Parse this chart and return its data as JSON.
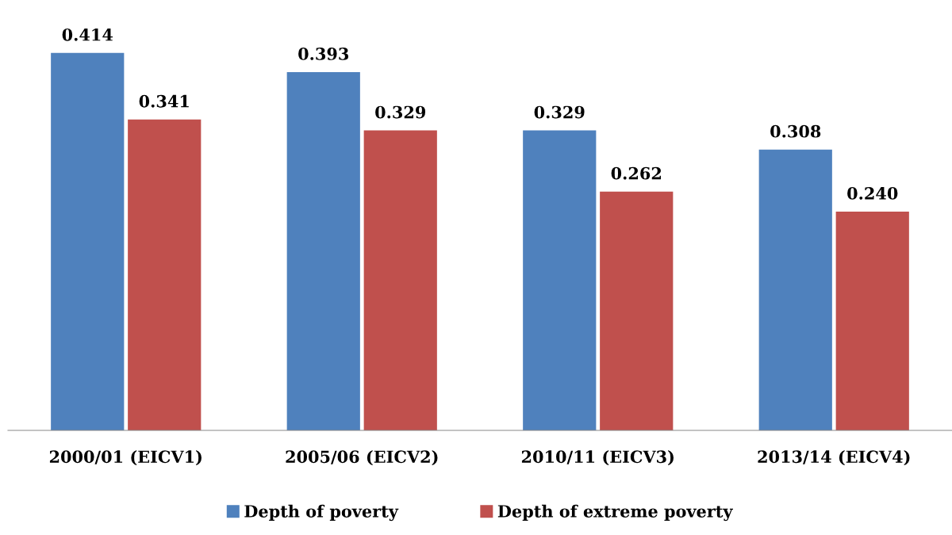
{
  "chart_data": {
    "type": "bar",
    "categories": [
      "2000/01 (EICV1)",
      "2005/06 (EICV2)",
      "2010/11 (EICV3)",
      "2013/14 (EICV4)"
    ],
    "series": [
      {
        "name": "Depth of poverty",
        "color": "#4f81bd",
        "values": [
          0.414,
          0.393,
          0.329,
          0.308
        ],
        "value_labels": [
          "0.414",
          "0.393",
          "0.329",
          "0.308"
        ]
      },
      {
        "name": "Depth of extreme poverty",
        "color": "#c0504d",
        "values": [
          0.341,
          0.329,
          0.262,
          0.24
        ],
        "value_labels": [
          "0.341",
          "0.329",
          "0.262",
          "0.240"
        ]
      }
    ],
    "tick_labels": "x",
    "grid": false,
    "legend": "bottom"
  }
}
